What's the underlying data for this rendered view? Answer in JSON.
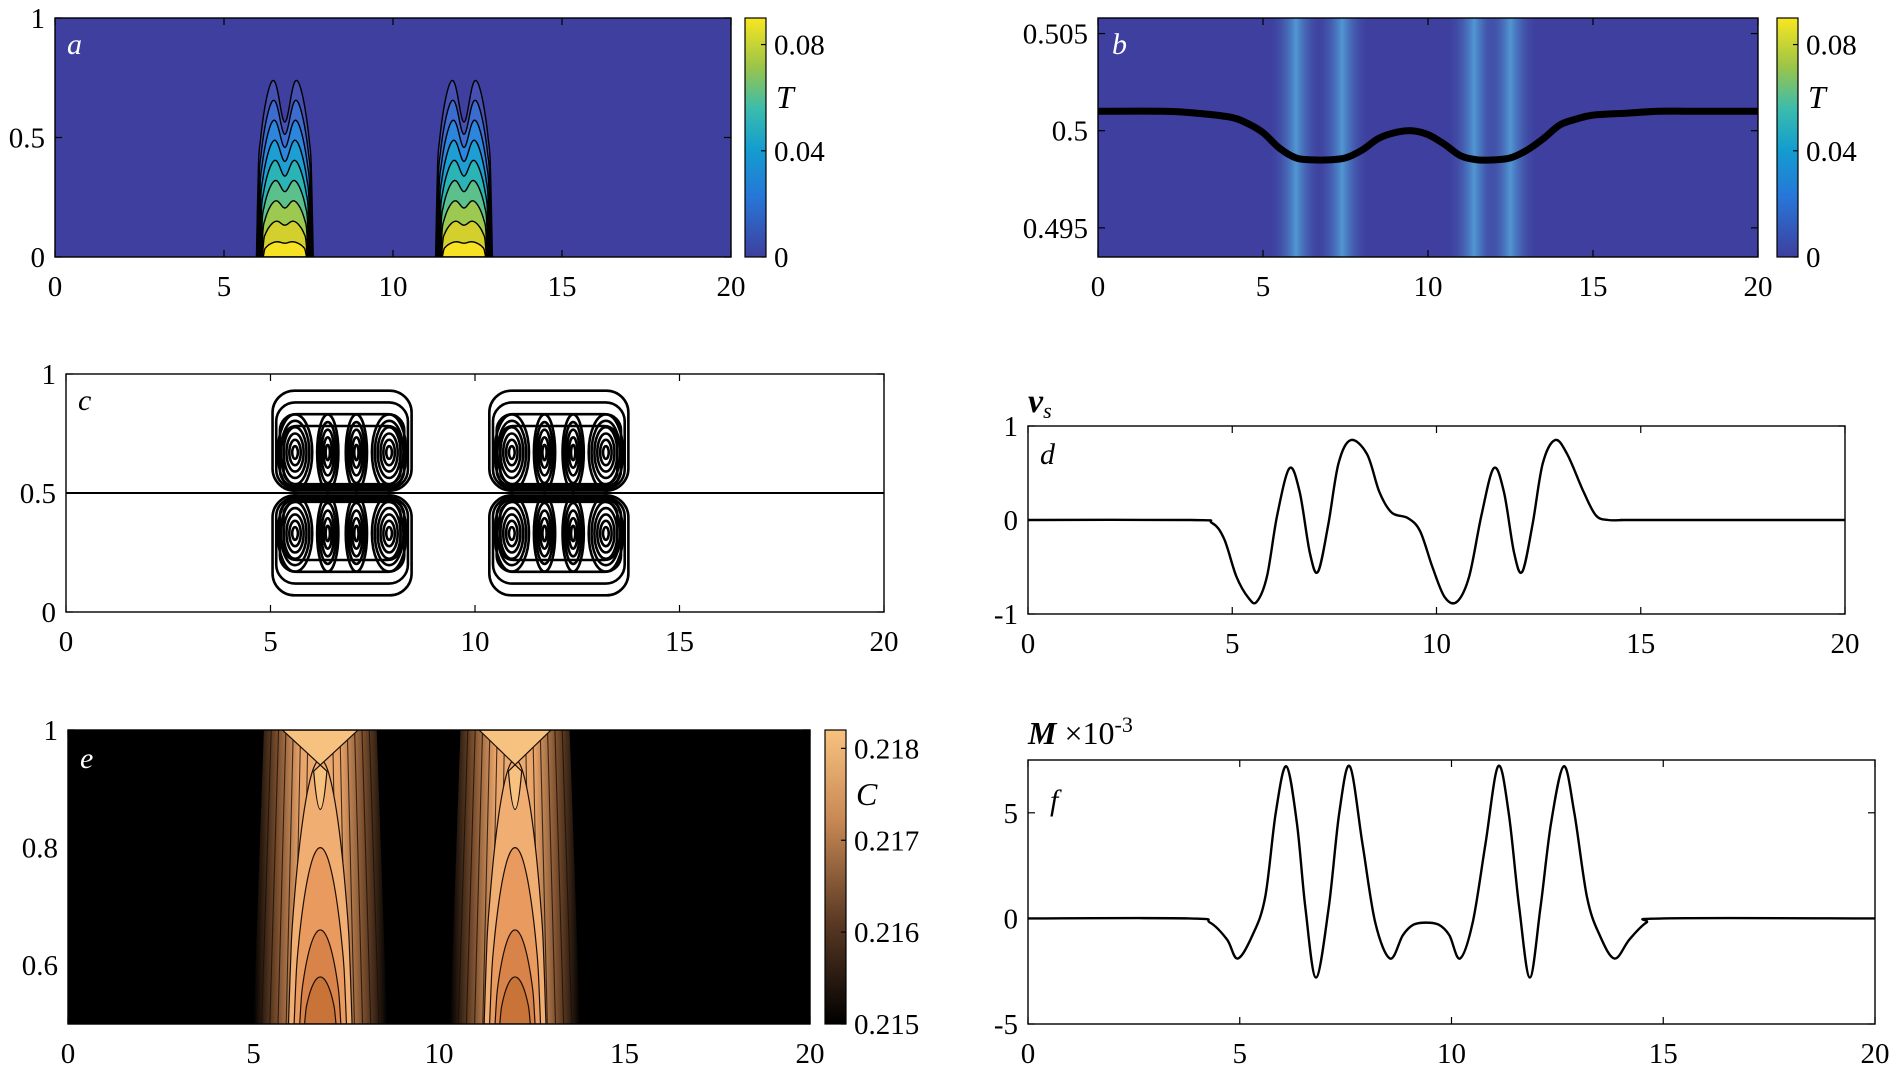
{
  "colors": {
    "parula_dark": "#3e3f9e",
    "parula_light": "#54a6dc",
    "parula_yellow": "#f9e620",
    "copper_dark": "#000000",
    "copper_light": "#f7c27f",
    "line": "#000000"
  },
  "chart_data": [
    {
      "id": "a",
      "type": "heatmap",
      "panel_label": "a",
      "title": "",
      "xlabel": "",
      "ylabel": "",
      "xlim": [
        0,
        20
      ],
      "ylim": [
        0,
        1
      ],
      "xticks": [
        "0",
        "5",
        "10",
        "15",
        "20"
      ],
      "yticks": [
        "0",
        "0.5",
        "1"
      ],
      "colorbar": {
        "label": "T",
        "range": [
          0,
          0.09
        ],
        "ticks": [
          "0",
          "0.04",
          "0.08"
        ]
      },
      "field": "temperature T, two plumes centered near x = 6.8 and x = 12.1, max ≈ 0.09 at y = 0",
      "plumes_x": [
        [
          6.0,
          7.6
        ],
        [
          11.3,
          12.9
        ]
      ],
      "contour_levels": [
        0.005,
        0.015,
        0.025,
        0.035,
        0.045,
        0.055,
        0.065,
        0.075,
        0.085
      ]
    },
    {
      "id": "b",
      "type": "line",
      "panel_label": "b",
      "title": "",
      "xlabel": "",
      "ylabel": "",
      "xlim": [
        0,
        20
      ],
      "ylim": [
        0.4935,
        0.5058
      ],
      "xticks": [
        "0",
        "5",
        "10",
        "15",
        "20"
      ],
      "yticks": [
        "0.495",
        "0.5",
        "0.505"
      ],
      "colorbar": {
        "label": "T",
        "range": [
          0,
          0.09
        ],
        "ticks": [
          "0",
          "0.04",
          "0.08"
        ]
      },
      "background_bands_x": [
        6.0,
        7.4,
        11.4,
        12.5
      ],
      "series": [
        {
          "x": [
            0,
            2,
            3,
            4,
            4.5,
            5,
            5.5,
            6,
            6.5,
            7,
            7.5,
            8,
            8.5,
            9,
            9.5,
            10,
            10.5,
            11,
            11.5,
            12,
            12.5,
            13,
            13.5,
            14,
            14.5,
            15,
            16,
            17,
            18,
            20
          ],
          "y": [
            0.501,
            0.501,
            0.5009,
            0.5007,
            0.5004,
            0.4999,
            0.4991,
            0.4986,
            0.4985,
            0.4985,
            0.4986,
            0.499,
            0.4996,
            0.4999,
            0.5,
            0.4998,
            0.4993,
            0.4987,
            0.4985,
            0.4985,
            0.4986,
            0.499,
            0.4996,
            0.5003,
            0.5006,
            0.5008,
            0.5009,
            0.501,
            0.501,
            0.501
          ]
        }
      ]
    },
    {
      "id": "c",
      "type": "line",
      "panel_label": "c",
      "title": "",
      "xlabel": "",
      "ylabel": "",
      "xlim": [
        0,
        20
      ],
      "ylim": [
        0,
        1
      ],
      "xticks": [
        "0",
        "5",
        "10",
        "15",
        "20"
      ],
      "yticks": [
        "0",
        "0.5",
        "1"
      ],
      "midline_y": 0.5,
      "vortex_centers_x": [
        [
          5.6,
          6.4,
          7.1,
          7.9
        ],
        [
          10.9,
          11.7,
          12.4,
          13.2
        ]
      ],
      "vortex_centers_y": [
        0.33,
        0.67
      ]
    },
    {
      "id": "d",
      "type": "line",
      "panel_label": "d",
      "title": "v_s",
      "xlabel": "",
      "ylabel": "",
      "xlim": [
        0,
        20
      ],
      "ylim": [
        -1,
        1
      ],
      "xticks": [
        "0",
        "5",
        "10",
        "15",
        "20"
      ],
      "yticks": [
        "-1",
        "0",
        "1"
      ],
      "series": [
        {
          "x": [
            0,
            4.0,
            4.5,
            4.8,
            5.1,
            5.4,
            5.6,
            5.85,
            6.1,
            6.4,
            6.65,
            6.9,
            7.1,
            7.35,
            7.6,
            7.9,
            8.3,
            8.6,
            8.9,
            9.3,
            9.6,
            9.9,
            10.2,
            10.5,
            10.8,
            11.1,
            11.4,
            11.65,
            11.9,
            12.1,
            12.35,
            12.6,
            12.9,
            13.2,
            13.6,
            13.9,
            14.2,
            14.6,
            15,
            20
          ],
          "y": [
            0,
            0,
            -0.03,
            -0.2,
            -0.6,
            -0.83,
            -0.87,
            -0.6,
            0.05,
            0.55,
            0.3,
            -0.35,
            -0.55,
            -0.05,
            0.6,
            0.85,
            0.7,
            0.3,
            0.08,
            0.02,
            -0.12,
            -0.5,
            -0.82,
            -0.87,
            -0.6,
            0.05,
            0.55,
            0.3,
            -0.35,
            -0.55,
            -0.05,
            0.6,
            0.85,
            0.7,
            0.3,
            0.05,
            0.0,
            0.0,
            0,
            0
          ]
        }
      ]
    },
    {
      "id": "e",
      "type": "heatmap",
      "panel_label": "e",
      "title": "",
      "xlabel": "",
      "ylabel": "",
      "xlim": [
        0,
        20
      ],
      "ylim": [
        0.5,
        1
      ],
      "xticks": [
        "0",
        "5",
        "10",
        "15",
        "20"
      ],
      "yticks": [
        "0.6",
        "0.8",
        "1"
      ],
      "colorbar": {
        "label": "C",
        "range": [
          0.215,
          0.2182
        ],
        "ticks": [
          "0.215",
          "0.216",
          "0.217",
          "0.218"
        ]
      },
      "field": "concentration C, two bands centered near x = 6.8 and x = 12.1",
      "bands_x": [
        [
          5.0,
          8.6
        ],
        [
          10.3,
          13.8
        ]
      ]
    },
    {
      "id": "f",
      "type": "line",
      "panel_label": "f",
      "title": "M × 10^-3",
      "xlabel": "",
      "ylabel": "",
      "xlim": [
        0,
        20
      ],
      "ylim": [
        -5,
        7.5
      ],
      "xticks": [
        "0",
        "5",
        "10",
        "15",
        "20"
      ],
      "yticks": [
        "-5",
        "0",
        "5"
      ],
      "series": [
        {
          "x": [
            0,
            3.8,
            4.3,
            4.7,
            4.95,
            5.3,
            5.6,
            5.85,
            6.1,
            6.35,
            6.55,
            6.8,
            7.1,
            7.35,
            7.6,
            7.9,
            8.2,
            8.55,
            8.85,
            9.1,
            9.4,
            9.7,
            9.95,
            10.2,
            10.5,
            10.8,
            11.1,
            11.35,
            11.6,
            11.85,
            12.1,
            12.35,
            12.65,
            12.9,
            13.2,
            13.5,
            13.85,
            14.2,
            14.6,
            15,
            20
          ],
          "y": [
            0,
            0,
            -0.2,
            -1.0,
            -1.9,
            -0.8,
            1.0,
            5.0,
            7.2,
            4.5,
            0.5,
            -2.8,
            0.5,
            5.0,
            7.2,
            3.5,
            -0.2,
            -1.9,
            -0.8,
            -0.3,
            -0.2,
            -0.3,
            -0.8,
            -1.9,
            -0.2,
            3.5,
            7.2,
            5.0,
            0.5,
            -2.8,
            0.5,
            4.5,
            7.2,
            5.0,
            1.0,
            -0.8,
            -1.9,
            -1.0,
            -0.2,
            0,
            0
          ]
        }
      ]
    }
  ]
}
